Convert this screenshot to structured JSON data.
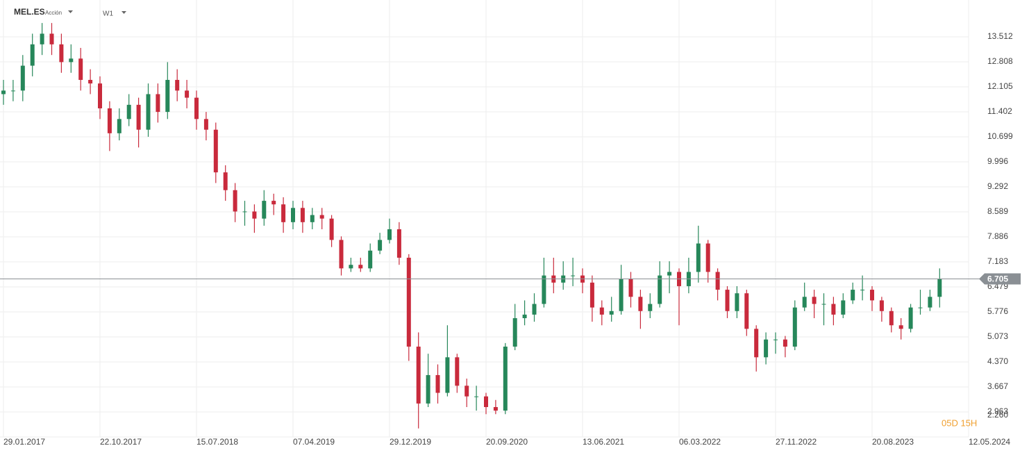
{
  "chart_data": {
    "type": "candlestick",
    "symbol": "MEL.ES",
    "instrument_type": "Acción",
    "timeframe": "W1",
    "countdown": "05D 15H",
    "categories": [
      "29.01.2017",
      null,
      null,
      null,
      null,
      null,
      null,
      null,
      null,
      null,
      "22.10.2017",
      null,
      null,
      null,
      null,
      null,
      null,
      null,
      null,
      null,
      "15.07.2018",
      null,
      null,
      null,
      null,
      null,
      null,
      null,
      null,
      null,
      "07.04.2019",
      null,
      null,
      null,
      null,
      null,
      null,
      null,
      null,
      null,
      "29.12.2019",
      null,
      null,
      null,
      null,
      null,
      null,
      null,
      null,
      null,
      "20.09.2020",
      null,
      null,
      null,
      null,
      null,
      null,
      null,
      null,
      null,
      "13.06.2021",
      null,
      null,
      null,
      null,
      null,
      null,
      null,
      null,
      null,
      "06.03.2022",
      null,
      null,
      null,
      null,
      null,
      null,
      null,
      null,
      null,
      "27.11.2022",
      null,
      null,
      null,
      null,
      null,
      null,
      null,
      null,
      null,
      "20.08.2023",
      null,
      null,
      null,
      null,
      null,
      null,
      null,
      null,
      null,
      "12.05.2024"
    ],
    "open": [
      11.9,
      12.0,
      12.0,
      12.7,
      13.3,
      13.6,
      13.3,
      12.8,
      12.9,
      12.3,
      12.2,
      11.5,
      10.8,
      11.2,
      11.6,
      10.9,
      11.9,
      11.4,
      12.3,
      12.0,
      11.8,
      11.2,
      10.9,
      9.7,
      9.2,
      8.6,
      8.6,
      8.4,
      8.9,
      8.8,
      8.3,
      8.7,
      8.3,
      8.5,
      8.4,
      7.8,
      7.0,
      7.1,
      7.0,
      7.5,
      7.8,
      8.1,
      7.3,
      4.8,
      3.2,
      4.0,
      3.5,
      4.5,
      3.7,
      3.4,
      3.4,
      3.1,
      3.0,
      4.8,
      5.6,
      5.7,
      6.0,
      6.8,
      6.6,
      6.8,
      6.8,
      6.6,
      5.9,
      5.7,
      5.8,
      6.7,
      6.2,
      5.8,
      6.0,
      6.8,
      6.9,
      6.5,
      6.9,
      7.7,
      6.9,
      6.4,
      5.8,
      6.3,
      5.3,
      4.5,
      5.0,
      5.0,
      4.8,
      5.9,
      6.2,
      6.0,
      6.0,
      5.7,
      6.1,
      6.4,
      6.4,
      6.1,
      5.8,
      5.4,
      5.3,
      5.9,
      5.9,
      6.2,
      null,
      null,
      null
    ],
    "high": [
      12.3,
      12.3,
      13.0,
      13.6,
      13.9,
      13.9,
      13.6,
      13.3,
      13.2,
      12.6,
      12.4,
      11.7,
      11.5,
      11.9,
      11.8,
      12.2,
      12.2,
      12.8,
      12.6,
      12.3,
      12.0,
      11.4,
      11.1,
      9.9,
      9.4,
      8.9,
      8.8,
      9.2,
      9.1,
      9.0,
      8.9,
      8.9,
      8.7,
      8.7,
      8.5,
      7.9,
      7.3,
      7.3,
      7.7,
      8.0,
      8.4,
      8.3,
      7.4,
      5.2,
      4.6,
      4.3,
      5.4,
      4.6,
      3.9,
      3.7,
      3.5,
      3.3,
      4.9,
      6.0,
      6.1,
      6.3,
      7.3,
      7.3,
      7.2,
      7.3,
      7.0,
      6.8,
      6.1,
      6.2,
      7.1,
      6.9,
      6.4,
      6.3,
      7.2,
      7.2,
      7.0,
      7.3,
      8.2,
      7.8,
      7.0,
      6.5,
      6.5,
      6.4,
      5.4,
      5.2,
      5.2,
      5.1,
      6.1,
      6.6,
      6.4,
      6.3,
      6.2,
      6.3,
      6.6,
      6.8,
      6.5,
      6.2,
      5.9,
      5.6,
      6.0,
      6.4,
      6.4,
      7.0,
      null,
      null,
      null
    ],
    "low": [
      11.6,
      11.7,
      11.7,
      12.4,
      13.0,
      13.0,
      12.5,
      12.5,
      12.0,
      11.9,
      11.2,
      10.3,
      10.6,
      11.0,
      10.4,
      10.7,
      11.1,
      11.2,
      11.7,
      11.5,
      10.9,
      10.6,
      9.4,
      8.9,
      8.3,
      8.2,
      8.0,
      8.2,
      8.5,
      8.0,
      8.1,
      8.0,
      8.1,
      8.1,
      7.6,
      6.8,
      6.9,
      6.9,
      6.9,
      7.4,
      7.7,
      7.1,
      4.4,
      2.5,
      3.1,
      3.2,
      3.4,
      3.5,
      3.1,
      3.0,
      2.9,
      2.9,
      2.9,
      4.7,
      5.4,
      5.5,
      5.9,
      6.3,
      6.4,
      6.5,
      6.3,
      5.5,
      5.4,
      5.5,
      5.7,
      5.9,
      5.3,
      5.6,
      5.9,
      6.3,
      5.4,
      6.3,
      6.6,
      6.6,
      6.1,
      5.6,
      5.6,
      5.1,
      4.1,
      4.3,
      4.6,
      4.5,
      4.7,
      5.8,
      5.6,
      5.4,
      5.4,
      5.6,
      6.0,
      6.1,
      5.8,
      5.5,
      5.2,
      5.0,
      5.2,
      5.7,
      5.8,
      5.9,
      null,
      null,
      null
    ],
    "close": [
      12.0,
      12.0,
      12.7,
      13.3,
      13.6,
      13.3,
      12.8,
      12.9,
      12.3,
      12.2,
      11.5,
      10.8,
      11.2,
      11.6,
      10.9,
      11.9,
      11.4,
      12.3,
      12.0,
      11.8,
      11.2,
      10.9,
      9.7,
      9.2,
      8.6,
      8.6,
      8.4,
      8.9,
      8.8,
      8.3,
      8.7,
      8.3,
      8.5,
      8.4,
      7.8,
      7.0,
      7.1,
      7.0,
      7.5,
      7.8,
      8.1,
      7.3,
      4.8,
      3.2,
      4.0,
      3.5,
      4.5,
      3.7,
      3.4,
      3.4,
      3.1,
      3.0,
      4.8,
      5.6,
      5.7,
      6.0,
      6.8,
      6.6,
      6.8,
      6.8,
      6.6,
      5.9,
      5.7,
      5.8,
      6.7,
      6.2,
      5.8,
      6.0,
      6.8,
      6.9,
      6.5,
      6.9,
      7.7,
      6.9,
      6.4,
      5.8,
      6.3,
      5.3,
      4.5,
      5.0,
      5.0,
      4.8,
      5.9,
      6.2,
      6.0,
      6.0,
      5.7,
      6.1,
      6.4,
      6.4,
      6.1,
      5.8,
      5.4,
      5.3,
      5.9,
      5.9,
      6.2,
      6.705,
      null,
      null,
      null
    ],
    "up_color": "#26875a",
    "down_color": "#c92a3c",
    "last_price": 6.705,
    "ylim": [
      2.26,
      14.547
    ],
    "yticks": [
      {
        "value": 2.26,
        "label": "2.260"
      },
      2.963,
      3.667,
      {
        "value": 4.37,
        "label": "4.370"
      },
      5.073,
      5.776,
      6.479,
      7.183,
      7.886,
      8.589,
      9.292,
      9.996,
      10.699,
      11.402,
      12.105,
      12.808,
      13.512
    ],
    "grid": true
  }
}
